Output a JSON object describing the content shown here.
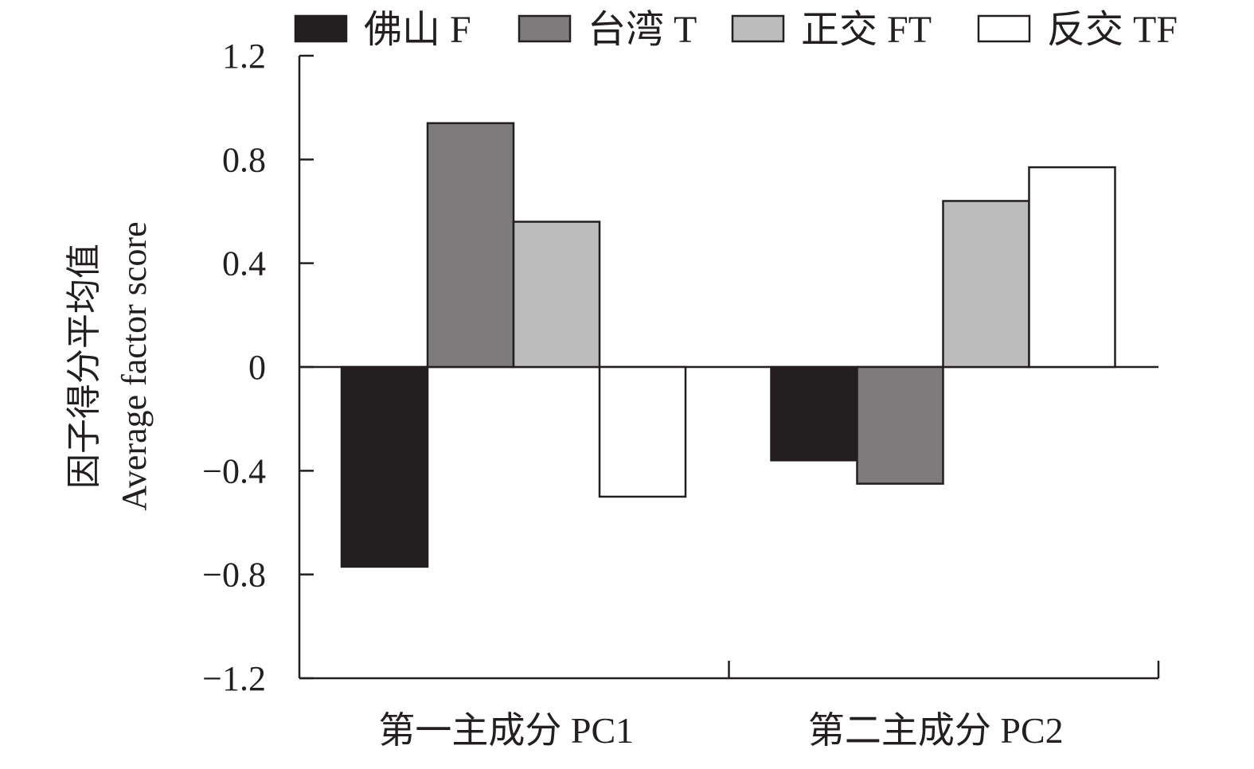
{
  "chart_data": {
    "type": "bar",
    "title": "",
    "ylabel_zh": "因子得分平均值",
    "ylabel": "Average factor score",
    "xlabel": "",
    "categories": [
      "第一主成分 PC1",
      "第二主成分 PC2"
    ],
    "series": [
      {
        "name": "佛山 F",
        "values": [
          -0.77,
          -0.36
        ],
        "color": "#231f20"
      },
      {
        "name": "台湾 T",
        "values": [
          0.94,
          -0.45
        ],
        "color": "#7d7b7c"
      },
      {
        "name": "正交 FT",
        "values": [
          0.56,
          0.64
        ],
        "color": "#bdbcbc"
      },
      {
        "name": "反交 TF",
        "values": [
          -0.5,
          0.77
        ],
        "color": "#ffffff"
      }
    ],
    "ylim": [
      -1.2,
      1.2
    ],
    "yticks": [
      1.2,
      0.8,
      0.4,
      0,
      -0.4,
      -0.8,
      -1.2
    ],
    "ytick_labels": [
      "1.2",
      "0.8",
      "0.4",
      "0",
      "−0.4",
      "−0.8",
      "−1.2"
    ],
    "grid": false,
    "legend_position": "top"
  }
}
